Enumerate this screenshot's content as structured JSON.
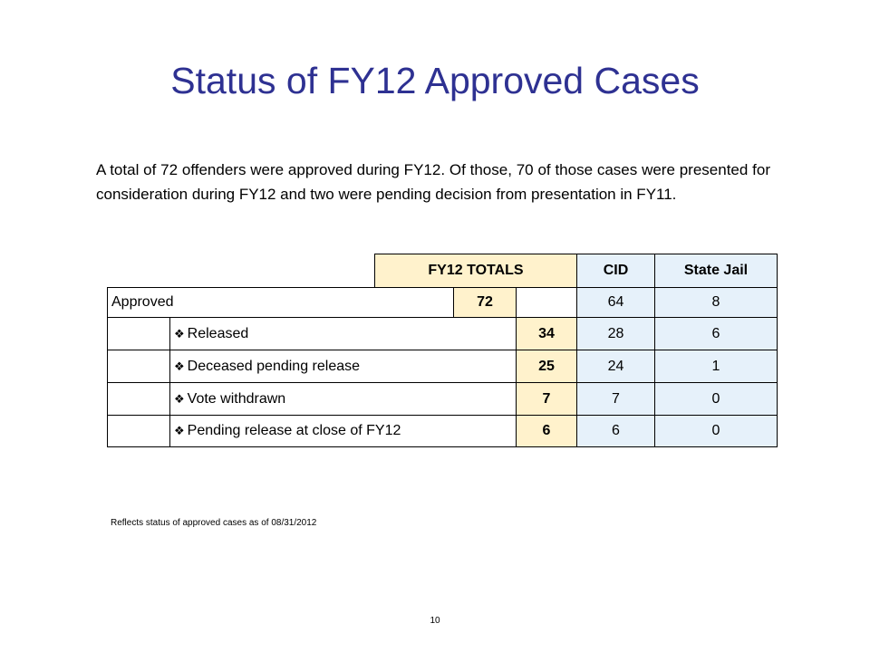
{
  "title": "Status of  FY12 Approved Cases",
  "intro": "A total of 72 offenders were approved during FY12.  Of those, 70 of those cases were presented for consideration during FY12 and two were pending decision from presentation in FY11.",
  "table": {
    "headers": {
      "totals": "FY12 TOTALS",
      "cid": "CID",
      "jail": "State Jail"
    },
    "approved": {
      "label": "Approved",
      "total": "72",
      "cid": "64",
      "jail": "8"
    },
    "rows": [
      {
        "label": "Released",
        "total": "34",
        "cid": "28",
        "jail": "6"
      },
      {
        "label": "Deceased pending release",
        "total": "25",
        "cid": "24",
        "jail": "1"
      },
      {
        "label": "Vote withdrawn",
        "total": "7",
        "cid": "7",
        "jail": "0"
      },
      {
        "label": "Pending release at close of FY12",
        "total": "6",
        "cid": "6",
        "jail": "0"
      }
    ],
    "bullet_glyph": "❖",
    "colors": {
      "totals_bg": "#fff2cc",
      "other_bg": "#e6f1fa"
    }
  },
  "note": "Reflects status of approved cases as of 08/31/2012",
  "page_number": "10"
}
